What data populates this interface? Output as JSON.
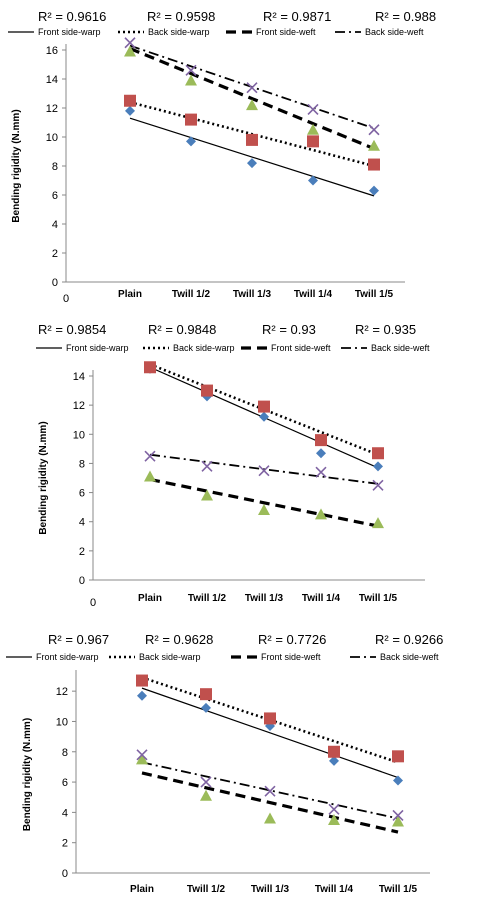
{
  "series_styles": {
    "Front side-warp": {
      "marker": "diamond",
      "marker_color": "#4a7ebb",
      "line": "solid"
    },
    "Back side-warp": {
      "marker": "square",
      "marker_color": "#c0504d",
      "line": "dotted"
    },
    "Front side-weft": {
      "marker": "triangle",
      "marker_color": "#9bbb59",
      "line": "dashed"
    },
    "Back side-weft": {
      "marker": "cross",
      "marker_color": "#7f63a2",
      "line": "dashdot"
    }
  },
  "chart_data": [
    {
      "type": "scatter",
      "title": "",
      "xlabel": "",
      "ylabel": "Bending rigidity (N.mm)",
      "x_origin_label": "0",
      "categories": [
        "Plain",
        "Twill 1/2",
        "Twill 1/3",
        "Twill 1/4",
        "Twill 1/5"
      ],
      "ylim": [
        0,
        16
      ],
      "yticks": [
        0,
        2,
        4,
        6,
        8,
        10,
        12,
        14,
        16
      ],
      "r2_labels": [
        "R² = 0.9616",
        "R² = 0.9598",
        "R² = 0.9871",
        "R² = 0.988"
      ],
      "legend": [
        "Front side-warp",
        "Back side-warp",
        "Front side-weft",
        "Back side-weft"
      ],
      "series": [
        {
          "name": "Front side-warp",
          "values": [
            11.8,
            9.7,
            8.2,
            7.0,
            6.3
          ],
          "trend": [
            11.3,
            9.96,
            8.62,
            7.28,
            5.94
          ]
        },
        {
          "name": "Back side-warp",
          "values": [
            12.5,
            11.2,
            9.8,
            9.7,
            8.1
          ],
          "trend": [
            12.4,
            11.3,
            10.2,
            9.1,
            8.0
          ]
        },
        {
          "name": "Front side-weft",
          "values": [
            15.9,
            13.9,
            12.2,
            10.5,
            9.4
          ],
          "trend": [
            16.1,
            14.3,
            12.5,
            10.8,
            9.2
          ]
        },
        {
          "name": "Back side-weft",
          "values": [
            16.5,
            14.6,
            13.4,
            11.9,
            10.5
          ],
          "trend": [
            16.3,
            14.9,
            13.5,
            12.0,
            10.6
          ]
        }
      ]
    },
    {
      "type": "scatter",
      "title": "",
      "xlabel": "",
      "ylabel": "Bending rigidity (N.mm)",
      "x_origin_label": "0",
      "categories": [
        "Plain",
        "Twill 1/2",
        "Twill 1/3",
        "Twill 1/4",
        "Twill 1/5"
      ],
      "ylim": [
        0,
        14
      ],
      "yticks": [
        0,
        2,
        4,
        6,
        8,
        10,
        12,
        14
      ],
      "r2_labels": [
        "R² = 0.9854",
        "R² = 0.9848",
        "R² = 0.93",
        "R² = 0.935"
      ],
      "legend": [
        "Front side-warp",
        "Back side-warp",
        "Front side-weft",
        "Back side-weft"
      ],
      "series": [
        {
          "name": "Front side-warp",
          "values": [
            14.5,
            12.6,
            11.2,
            8.7,
            7.8
          ],
          "trend": [
            14.6,
            12.9,
            11.2,
            9.5,
            7.7
          ]
        },
        {
          "name": "Back side-warp",
          "values": [
            14.6,
            13.0,
            11.9,
            9.6,
            8.7
          ],
          "trend": [
            14.8,
            13.3,
            11.8,
            10.2,
            8.6
          ]
        },
        {
          "name": "Front side-weft",
          "values": [
            7.1,
            5.8,
            4.8,
            4.5,
            3.9
          ],
          "trend": [
            6.9,
            6.1,
            5.3,
            4.5,
            3.7
          ]
        },
        {
          "name": "Back side-weft",
          "values": [
            8.5,
            7.8,
            7.5,
            7.4,
            6.5
          ],
          "trend": [
            8.6,
            8.1,
            7.6,
            7.1,
            6.6
          ]
        }
      ]
    },
    {
      "type": "scatter",
      "title": "",
      "xlabel": "",
      "ylabel": "Bending rigidity (N.mm)",
      "x_origin_label": "",
      "categories": [
        "Plain",
        "Twill 1/2",
        "Twill 1/3",
        "Twill 1/4",
        "Twill 1/5"
      ],
      "ylim": [
        0,
        13
      ],
      "yticks": [
        0,
        2,
        4,
        6,
        8,
        10,
        12
      ],
      "r2_labels": [
        "R² = 0.967",
        "R² = 0.9628",
        "R² = 0.7726",
        "R² = 0.9266"
      ],
      "legend": [
        "Front side-warp",
        "Back side-warp",
        "Front side-weft",
        "Back side-weft"
      ],
      "series": [
        {
          "name": "Front side-warp",
          "values": [
            11.7,
            10.9,
            9.7,
            7.4,
            6.1
          ],
          "trend": [
            12.2,
            10.7,
            9.3,
            7.8,
            6.3
          ]
        },
        {
          "name": "Back side-warp",
          "values": [
            12.7,
            11.8,
            10.2,
            8.0,
            7.7
          ],
          "trend": [
            12.9,
            11.5,
            10.1,
            8.7,
            7.3
          ]
        },
        {
          "name": "Front side-weft",
          "values": [
            7.5,
            5.1,
            3.6,
            3.5,
            3.4
          ],
          "trend": [
            6.6,
            5.6,
            4.6,
            3.7,
            2.7
          ]
        },
        {
          "name": "Back side-weft",
          "values": [
            7.8,
            6.0,
            5.4,
            4.2,
            3.8
          ],
          "trend": [
            7.3,
            6.4,
            5.4,
            4.5,
            3.6
          ]
        }
      ]
    }
  ]
}
